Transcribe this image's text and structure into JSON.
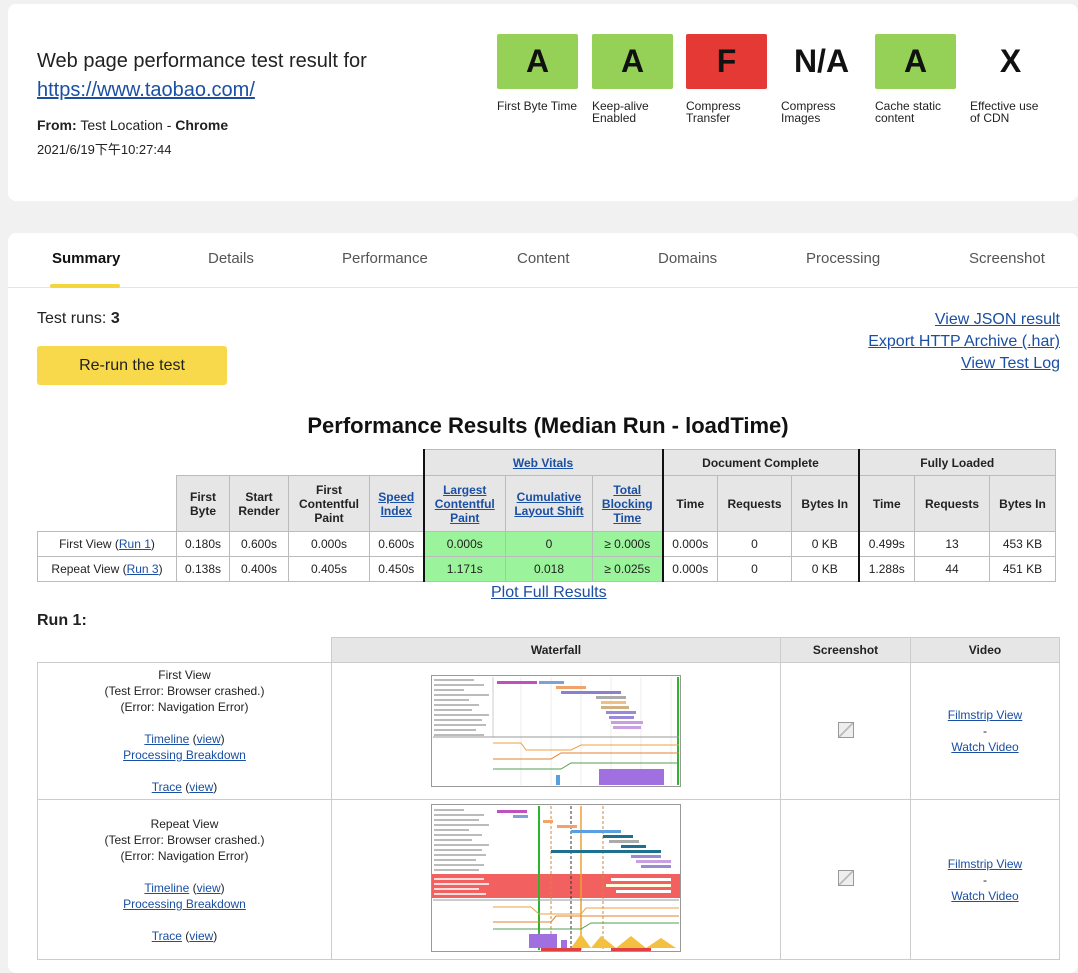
{
  "header": {
    "title": "Web page performance test result for",
    "url": "https://www.taobao.com/",
    "from_label": "From:",
    "from_location": "Test Location",
    "from_sep": " - ",
    "browser": "Chrome",
    "date": "2021/6/19下午10:27:44"
  },
  "grades": [
    {
      "grade": "A",
      "label": "First Byte Time",
      "color": "#95d157"
    },
    {
      "grade": "A",
      "label": "Keep-alive Enabled",
      "color": "#95d157"
    },
    {
      "grade": "F",
      "label": "Compress Transfer",
      "color": "#e53935"
    },
    {
      "grade": "N/A",
      "label": "Compress Images",
      "color": "none"
    },
    {
      "grade": "A",
      "label": "Cache static content",
      "color": "#95d157"
    },
    {
      "grade": "X",
      "label": "Effective use of CDN",
      "color": "none"
    }
  ],
  "tabs": [
    "Summary",
    "Details",
    "Performance",
    "Content",
    "Domains",
    "Processing",
    "Screenshot"
  ],
  "summary": {
    "test_runs_label": "Test runs:",
    "test_runs_value": "3",
    "rerun_label": "Re-run the test",
    "links": [
      "View JSON result",
      "Export HTTP Archive (.har)",
      "View Test Log"
    ]
  },
  "perf": {
    "title": "Performance Results (Median Run - loadTime)",
    "groups": {
      "web_vitals": "Web Vitals",
      "doc_complete": "Document Complete",
      "fully_loaded": "Fully Loaded"
    },
    "cols": {
      "first_byte": "First Byte",
      "start_render": "Start Render",
      "fcp": "First Contentful Paint",
      "speed_index": "Speed Index",
      "lcp": "Largest Contentful Paint",
      "cls": "Cumulative Layout Shift",
      "tbt": "Total Blocking Time",
      "time": "Time",
      "requests": "Requests",
      "bytes_in": "Bytes In"
    },
    "rows": [
      {
        "label": "First View (",
        "run_link": "Run 1",
        "label_end": ")",
        "first_byte": "0.180s",
        "start_render": "0.600s",
        "fcp": "0.000s",
        "speed_index": "0.600s",
        "lcp": "0.000s",
        "cls": "0",
        "tbt": "≥ 0.000s",
        "dc_time": "0.000s",
        "dc_requests": "0",
        "dc_bytes": "0 KB",
        "fl_time": "0.499s",
        "fl_requests": "13",
        "fl_bytes": "453 KB"
      },
      {
        "label": "Repeat View (",
        "run_link": "Run 3",
        "label_end": ")",
        "first_byte": "0.138s",
        "start_render": "0.400s",
        "fcp": "0.405s",
        "speed_index": "0.450s",
        "lcp": "1.171s",
        "cls": "0.018",
        "tbt": "≥ 0.025s",
        "dc_time": "0.000s",
        "dc_requests": "0",
        "dc_bytes": "0 KB",
        "fl_time": "1.288s",
        "fl_requests": "44",
        "fl_bytes": "451 KB"
      }
    ],
    "plot_link": "Plot Full Results"
  },
  "run1": {
    "title": "Run 1:",
    "headers": {
      "waterfall": "Waterfall",
      "screenshot": "Screenshot",
      "video": "Video"
    },
    "views": [
      {
        "name": "First View",
        "error1": "(Test Error: Browser crashed.)",
        "error2": "(Error: Navigation Error)",
        "timeline": "Timeline",
        "view": "view",
        "processing": "Processing Breakdown",
        "trace": "Trace",
        "filmstrip": "Filmstrip View",
        "dash": "-",
        "watch": "Watch Video"
      },
      {
        "name": "Repeat View",
        "error1": "(Test Error: Browser crashed.)",
        "error2": "(Error: Navigation Error)",
        "timeline": "Timeline",
        "view": "view",
        "processing": "Processing Breakdown",
        "trace": "Trace",
        "filmstrip": "Filmstrip View",
        "dash": "-",
        "watch": "Watch Video"
      }
    ]
  }
}
